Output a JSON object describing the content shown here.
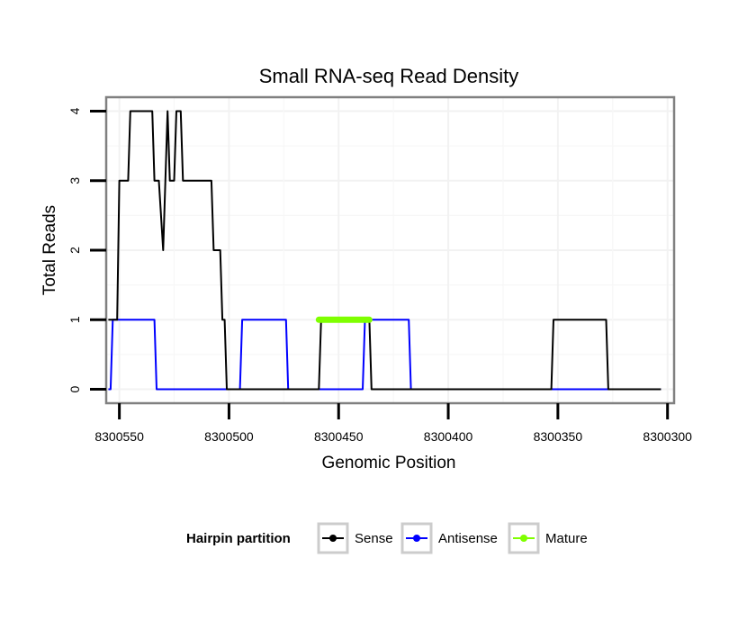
{
  "chart_data": {
    "type": "line",
    "title": "Small RNA-seq Read Density",
    "xlabel": "Genomic Position",
    "ylabel": "Total Reads",
    "xlim": [
      8300556,
      8300297
    ],
    "ylim": [
      -0.2,
      4.2
    ],
    "x_reversed": true,
    "grid": true,
    "x_ticks": [
      8300550,
      8300500,
      8300450,
      8300400,
      8300350,
      8300300
    ],
    "x_tick_labels": [
      "8300550",
      "8300500",
      "8300450",
      "8300400",
      "8300350",
      "8300300"
    ],
    "y_ticks": [
      0,
      1,
      2,
      3,
      4
    ],
    "y_tick_labels": [
      "0",
      "1",
      "2",
      "3",
      "4"
    ],
    "legend": {
      "title": "Hairpin partition",
      "position": "bottom"
    },
    "series": [
      {
        "name": "Sense",
        "color": "#000000",
        "points": [
          [
            8300555,
            1
          ],
          [
            8300551,
            1
          ],
          [
            8300550,
            3
          ],
          [
            8300546,
            3
          ],
          [
            8300545,
            4
          ],
          [
            8300535,
            4
          ],
          [
            8300534,
            3
          ],
          [
            8300532,
            3
          ],
          [
            8300530,
            2
          ],
          [
            8300528,
            4
          ],
          [
            8300527,
            3
          ],
          [
            8300525,
            3
          ],
          [
            8300524,
            4
          ],
          [
            8300522,
            4
          ],
          [
            8300521,
            3
          ],
          [
            8300508,
            3
          ],
          [
            8300507,
            2
          ],
          [
            8300504,
            2
          ],
          [
            8300503,
            1
          ],
          [
            8300502,
            1
          ],
          [
            8300501,
            0
          ],
          [
            8300459,
            0
          ],
          [
            8300458,
            1
          ],
          [
            8300436,
            1
          ],
          [
            8300435,
            0
          ],
          [
            8300353,
            0
          ],
          [
            8300352,
            1
          ],
          [
            8300328,
            1
          ],
          [
            8300327,
            0
          ],
          [
            8300303,
            0
          ]
        ]
      },
      {
        "name": "Antisense",
        "color": "#0000ff",
        "points": [
          [
            8300555,
            0
          ],
          [
            8300554,
            0
          ],
          [
            8300553,
            1
          ],
          [
            8300534,
            1
          ],
          [
            8300533,
            0
          ],
          [
            8300495,
            0
          ],
          [
            8300494,
            1
          ],
          [
            8300474,
            1
          ],
          [
            8300473,
            0
          ],
          [
            8300439,
            0
          ],
          [
            8300438,
            1
          ],
          [
            8300418,
            1
          ],
          [
            8300417,
            0
          ],
          [
            8300303,
            0
          ]
        ]
      },
      {
        "name": "Mature",
        "color": "#7fff00",
        "points": [
          [
            8300459,
            1
          ],
          [
            8300436,
            1
          ]
        ]
      }
    ]
  }
}
